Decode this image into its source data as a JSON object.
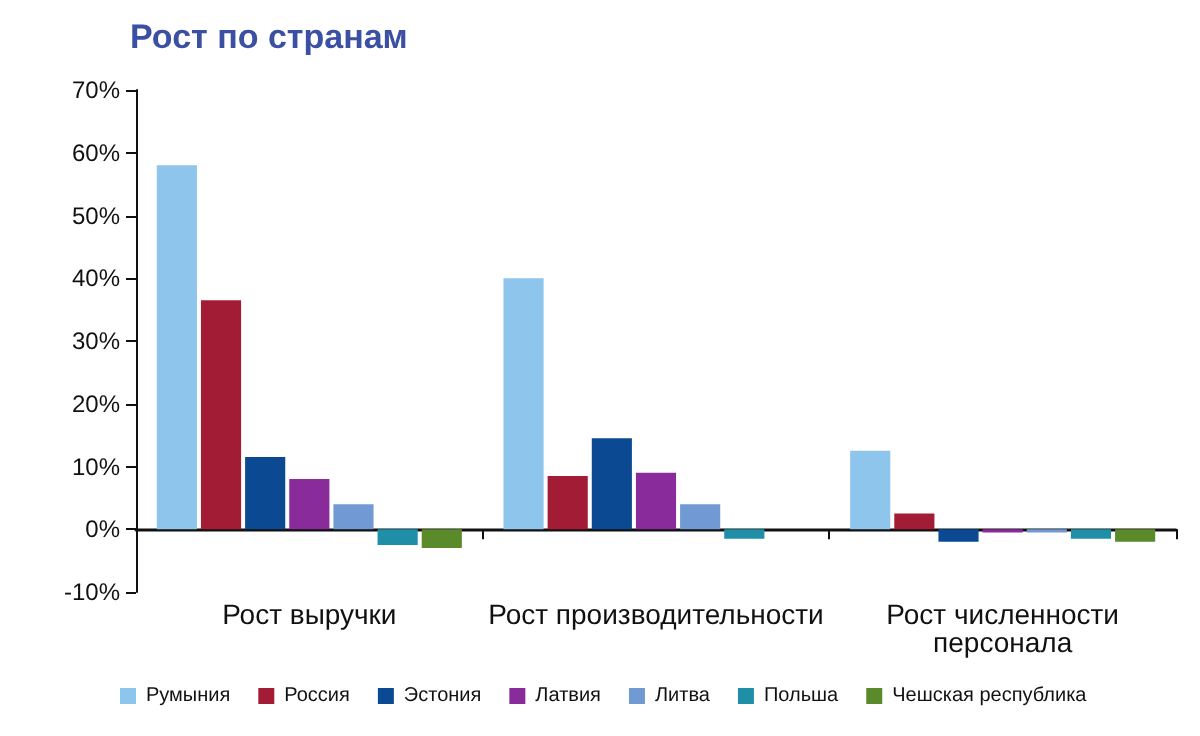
{
  "chart_data": {
    "type": "bar",
    "title": "Рост по странам",
    "categories": [
      "Рост выручки",
      "Рост производительности",
      "Рост численности\nперсонала"
    ],
    "series": [
      {
        "name": "Румыния",
        "color": "#8dc5ec",
        "values": [
          58,
          40,
          12.5
        ]
      },
      {
        "name": "Россия",
        "color": "#a31c35",
        "values": [
          36.5,
          8.5,
          2.5
        ]
      },
      {
        "name": "Эстония",
        "color": "#0b4a93",
        "values": [
          11.5,
          14.5,
          -2
        ]
      },
      {
        "name": "Латвия",
        "color": "#8a2b9b",
        "values": [
          8,
          9,
          -0.5
        ]
      },
      {
        "name": "Литва",
        "color": "#7199d3",
        "values": [
          4,
          4,
          -0.5
        ]
      },
      {
        "name": "Польша",
        "color": "#1f8fa8",
        "values": [
          -2.5,
          -1.5,
          -1.5
        ]
      },
      {
        "name": "Чешская республика",
        "color": "#5a8a2a",
        "values": [
          -3,
          null,
          -2
        ]
      }
    ],
    "ylim": [
      -10,
      70
    ],
    "yticks": [
      {
        "value": -10,
        "label": "-10%"
      },
      {
        "value": 0,
        "label": "0%"
      },
      {
        "value": 10,
        "label": "10%"
      },
      {
        "value": 20,
        "label": "20%"
      },
      {
        "value": 30,
        "label": "30%"
      },
      {
        "value": 40,
        "label": "40%"
      },
      {
        "value": 50,
        "label": "50%"
      },
      {
        "value": 60,
        "label": "60%"
      },
      {
        "value": 70,
        "label": "70%"
      }
    ],
    "grid": false,
    "legend": "bottom"
  }
}
